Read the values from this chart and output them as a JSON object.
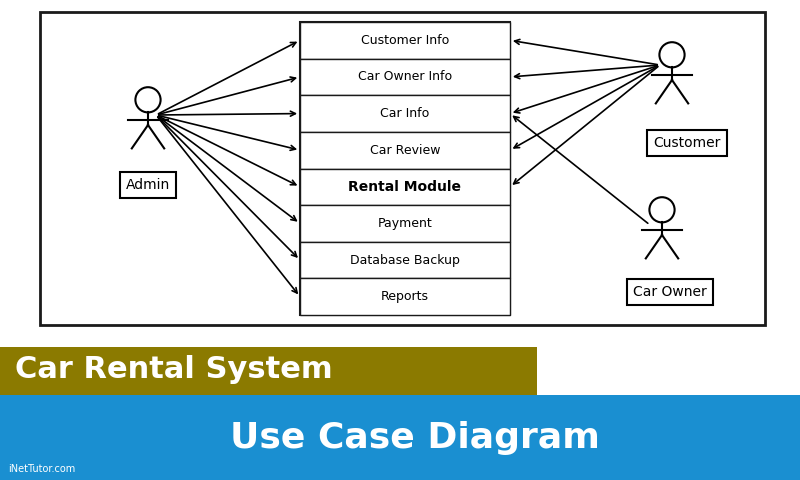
{
  "background_color": "#ffffff",
  "diagram_bg": "#ffffff",
  "border_color": "#1a1a1a",
  "use_cases": [
    "Customer Info",
    "Car Owner Info",
    "Car Info",
    "Car Review",
    "Rental Module",
    "Payment",
    "Database Backup",
    "Reports"
  ],
  "use_case_bold": [
    false,
    false,
    false,
    false,
    true,
    false,
    false,
    false
  ],
  "title1": "Car Rental System",
  "title2": "Use Case Diagram",
  "title1_color": "#ffffff",
  "title2_color": "#ffffff",
  "bar1_color": "#8B7A00",
  "bar2_color": "#1a8fd1",
  "watermark": "iNetTutor.com",
  "admin_connections": [
    0,
    1,
    2,
    3,
    4,
    5,
    6,
    7
  ],
  "customer_connections": [
    0,
    1,
    2,
    3,
    4
  ],
  "carowner_connections": [
    2
  ]
}
